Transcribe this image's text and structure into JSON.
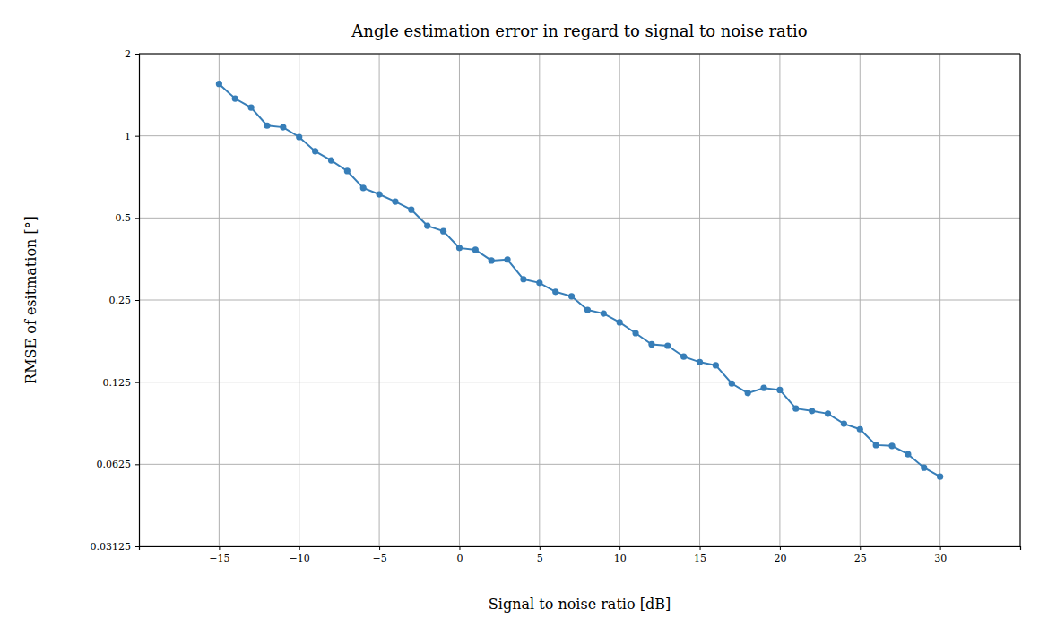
{
  "chart_data": {
    "type": "line",
    "title": "Angle estimation error in regard to signal to noise ratio",
    "x_label": "Signal to noise ratio [dB]",
    "y_label": "RMSE of esitmation [°]",
    "x": [
      -15,
      -14,
      -13,
      -12,
      -11,
      -10,
      -9,
      -8,
      -7,
      -6,
      -5,
      -4,
      -3,
      -2,
      -1,
      0,
      1,
      2,
      3,
      4,
      5,
      6,
      7,
      8,
      9,
      10,
      11,
      12,
      13,
      14,
      15,
      16,
      17,
      18,
      19,
      20,
      21,
      22,
      23,
      24,
      25,
      26,
      27,
      28,
      29,
      30
    ],
    "values": [
      1.55,
      1.37,
      1.27,
      1.09,
      1.075,
      0.99,
      0.878,
      0.813,
      0.743,
      0.644,
      0.61,
      0.574,
      0.536,
      0.468,
      0.447,
      0.388,
      0.382,
      0.349,
      0.352,
      0.298,
      0.289,
      0.268,
      0.258,
      0.23,
      0.223,
      0.207,
      0.189,
      0.172,
      0.17,
      0.155,
      0.148,
      0.144,
      0.1235,
      0.114,
      0.119,
      0.117,
      0.1,
      0.098,
      0.0958,
      0.088,
      0.084,
      0.0735,
      0.073,
      0.068,
      0.0607,
      0.0563
    ],
    "color": "#377eb8",
    "marker": "circle",
    "line_style": "solid",
    "log": "y",
    "grid": true,
    "xlim": [
      -20,
      35
    ],
    "xticks": [
      {
        "value": -15,
        "label": "−15"
      },
      {
        "value": -10,
        "label": "−10"
      },
      {
        "value": -5,
        "label": "−5"
      },
      0,
      5,
      10,
      15,
      20,
      25,
      30
    ],
    "ylim": [
      0.03125,
      2
    ],
    "yticks": [
      0.03125,
      0.0625,
      0.125,
      0.25,
      0.5,
      1,
      2
    ]
  }
}
